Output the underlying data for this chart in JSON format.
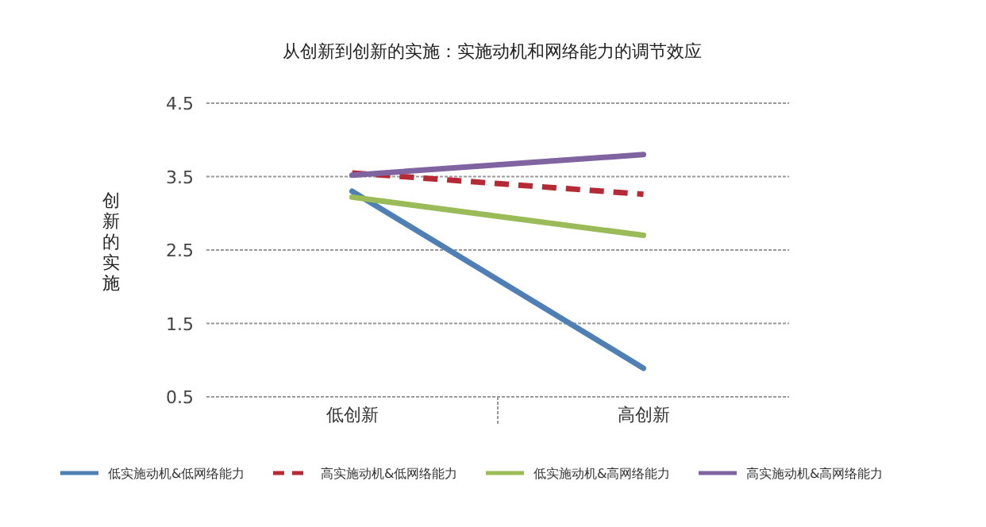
{
  "chart_data": {
    "type": "line",
    "title": "从创新到创新的实施：实施动机和网络能力的调节效应",
    "ylabel": "创新的实施",
    "categories": [
      "低创新",
      "高创新"
    ],
    "ylim": [
      0.5,
      4.5
    ],
    "yticks": [
      {
        "value": 0.5,
        "label": "0.5"
      },
      {
        "value": 1.5,
        "label": "1.5"
      },
      {
        "value": 2.5,
        "label": "2.5"
      },
      {
        "value": 3.5,
        "label": "3.5"
      },
      {
        "value": 4.5,
        "label": "4.5"
      }
    ],
    "grid": "y",
    "legend": "bottom",
    "marker": "none",
    "series": [
      {
        "name": "低实施动机&低网络能力",
        "color": "#4f7fb5",
        "values": [
          3.3,
          0.89
        ]
      },
      {
        "name": "高实施动机&低网络能力",
        "color": "#b52a35",
        "values": [
          3.55,
          3.26
        ],
        "line_style": "dashed"
      },
      {
        "name": "低实施动机&高网络能力",
        "color": "#9bbb59",
        "values": [
          3.22,
          2.7
        ]
      },
      {
        "name": "高实施动机&高网络能力",
        "color": "#8064a2",
        "values": [
          3.52,
          3.8
        ]
      }
    ]
  }
}
